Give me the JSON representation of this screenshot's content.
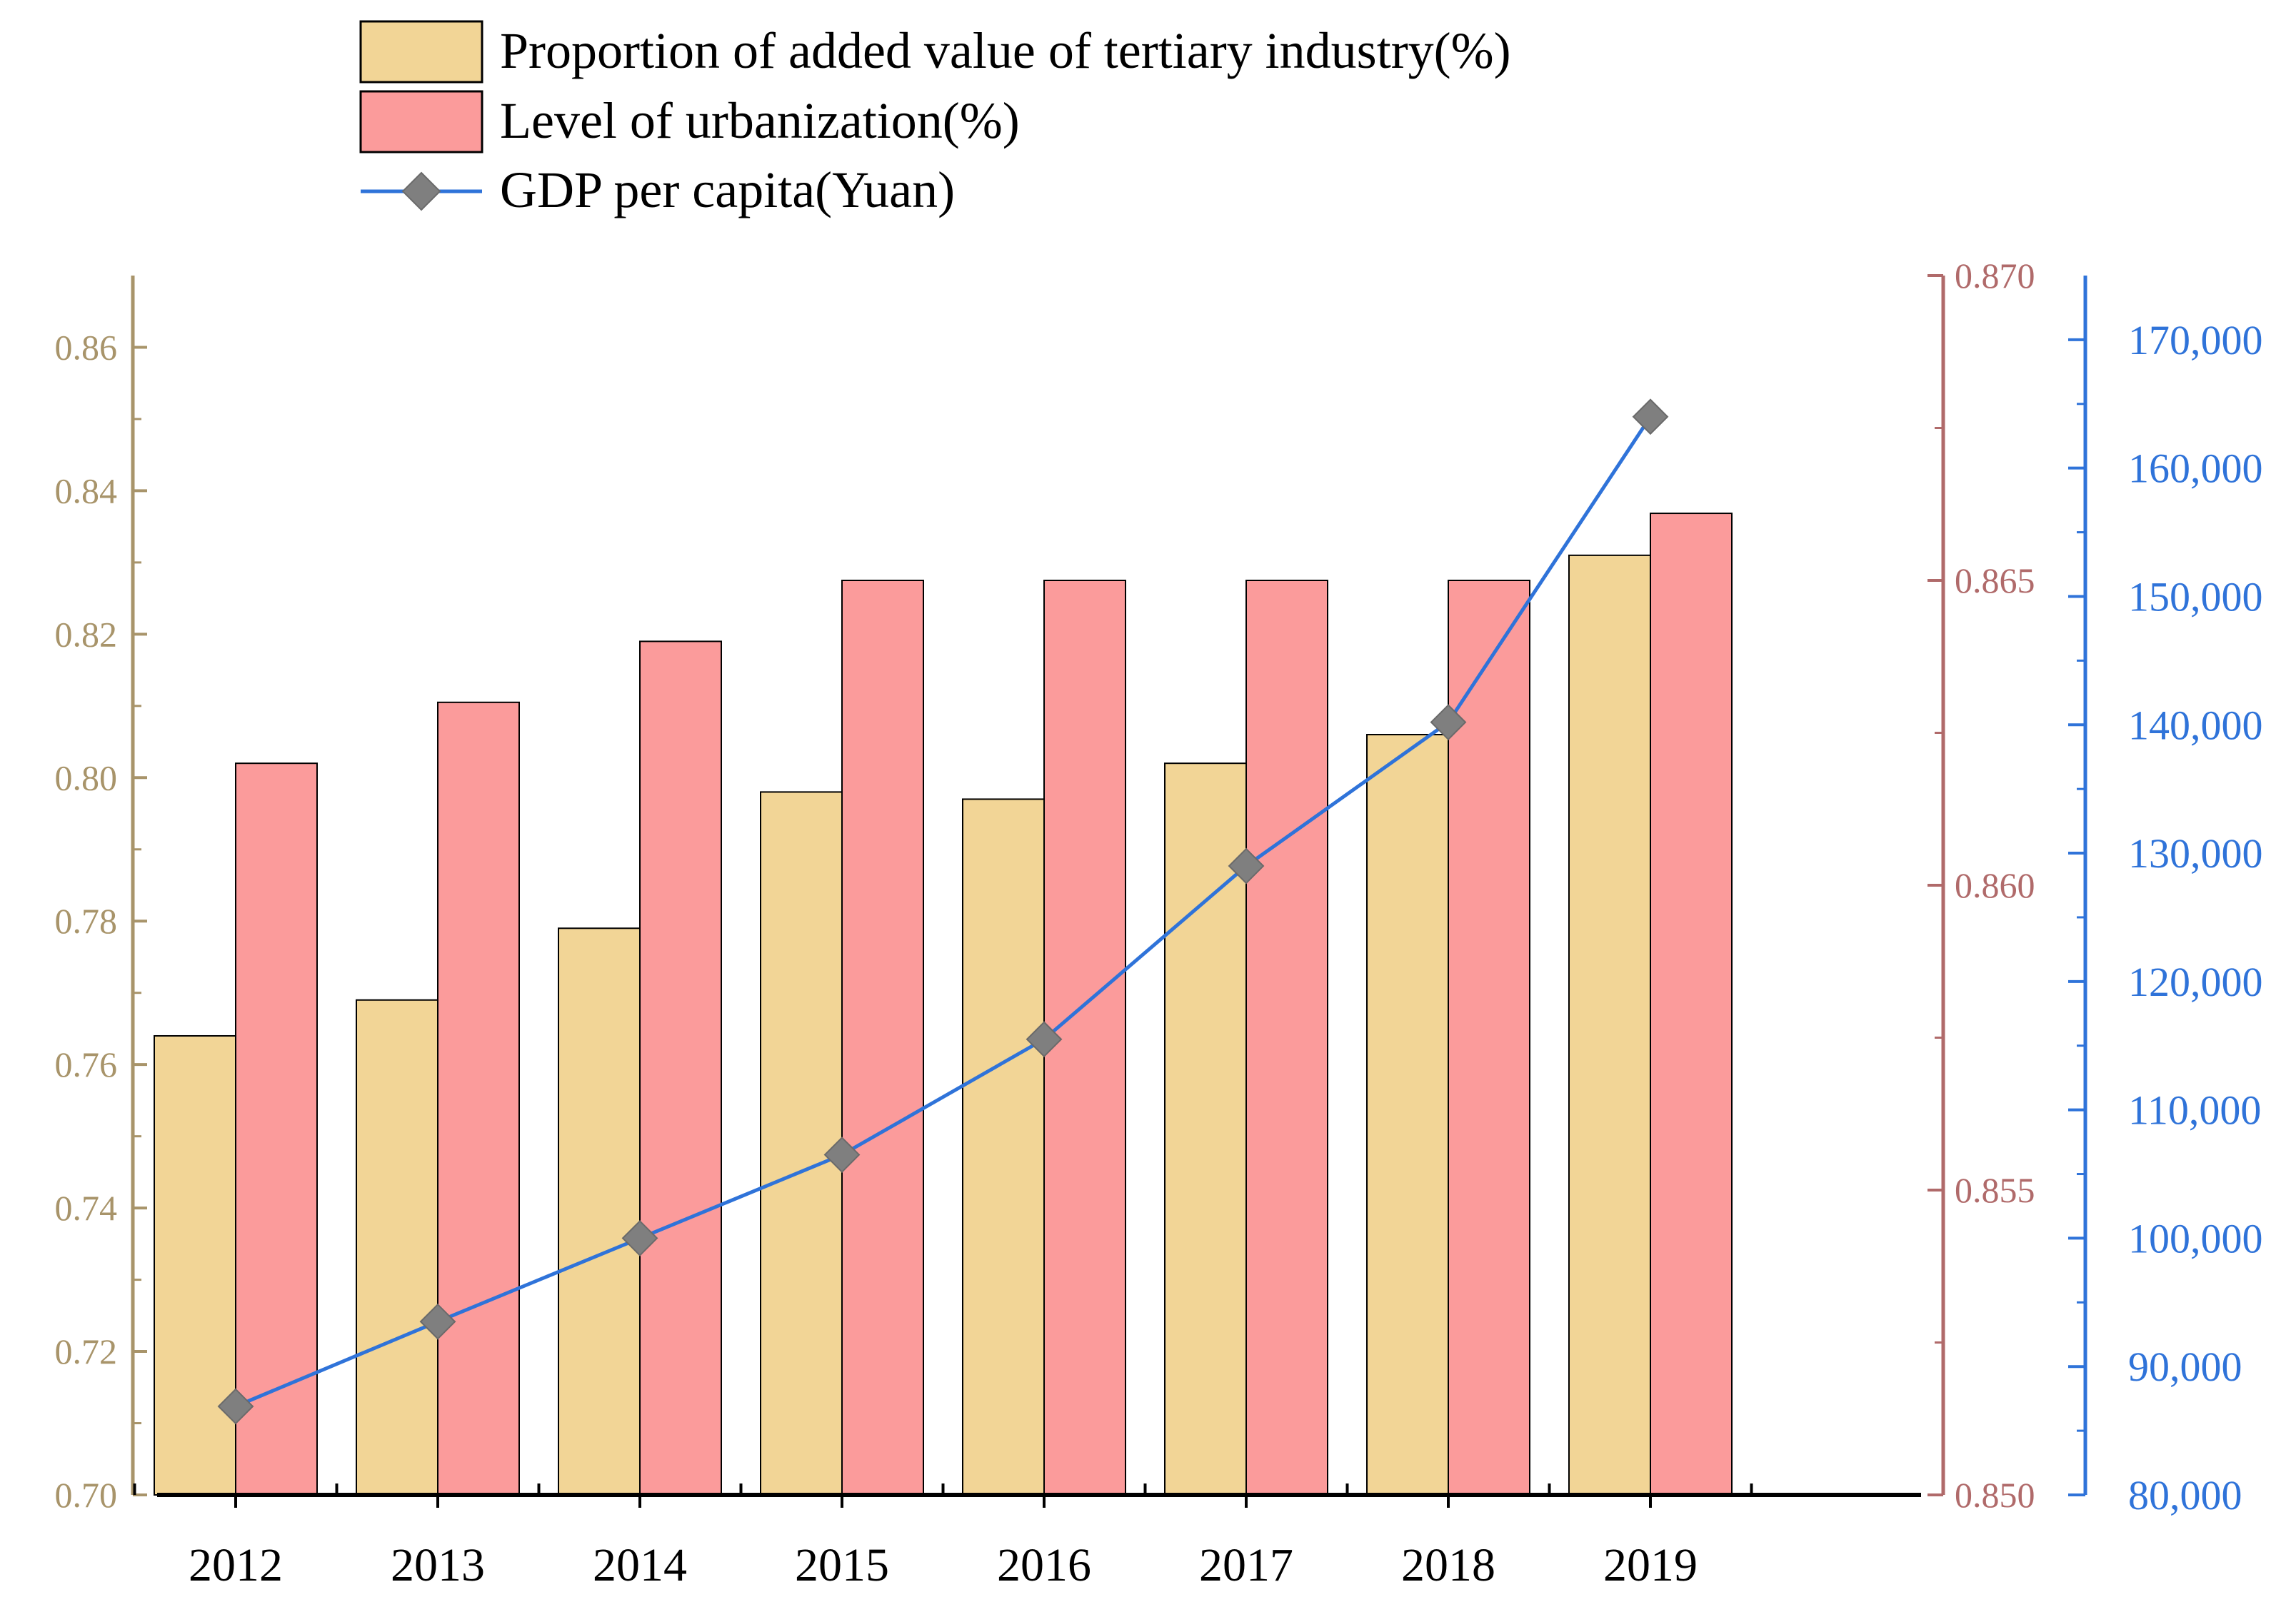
{
  "chart_data": {
    "type": "bar",
    "categories": [
      "2012",
      "2013",
      "2014",
      "2015",
      "2016",
      "2017",
      "2018",
      "2019"
    ],
    "series": [
      {
        "name": "Proportion of added value of tertiary industry(%)",
        "kind": "bar",
        "axis": "left",
        "color": "#F2D596",
        "values": [
          0.764,
          0.769,
          0.779,
          0.798,
          0.797,
          0.802,
          0.806,
          0.831
        ]
      },
      {
        "name": "Level of urbanization(%)",
        "kind": "bar",
        "axis": "right-inner",
        "color": "#FB9B9B",
        "values": [
          0.862,
          0.863,
          0.864,
          0.865,
          0.865,
          0.865,
          0.865,
          0.8661
        ]
      },
      {
        "name": "GDP per capita(Yuan)",
        "kind": "line",
        "axis": "right-outer",
        "color": "#2F73D9",
        "marker_color": "#7F7F7F",
        "values": [
          86900,
          93500,
          100000,
          106500,
          115500,
          129000,
          140200,
          164000
        ]
      }
    ],
    "axes": {
      "left": {
        "range": [
          0.7,
          0.87
        ],
        "ticks": [
          "0.70",
          "0.72",
          "0.74",
          "0.76",
          "0.78",
          "0.80",
          "0.82",
          "0.84",
          "0.86"
        ],
        "color": "#A8946A"
      },
      "right_inner": {
        "range": [
          0.85,
          0.87
        ],
        "ticks": [
          "0.850",
          "0.855",
          "0.860",
          "0.865",
          "0.870"
        ],
        "color": "#B06A6A"
      },
      "right_outer": {
        "range": [
          80000,
          175000
        ],
        "ticks": [
          "80,000",
          "90,000",
          "100,000",
          "110,000",
          "120,000",
          "130,000",
          "140,000",
          "150,000",
          "160,000",
          "170,000"
        ],
        "color": "#2F73D9"
      }
    },
    "legend_placement": "top-left",
    "grid": false
  }
}
